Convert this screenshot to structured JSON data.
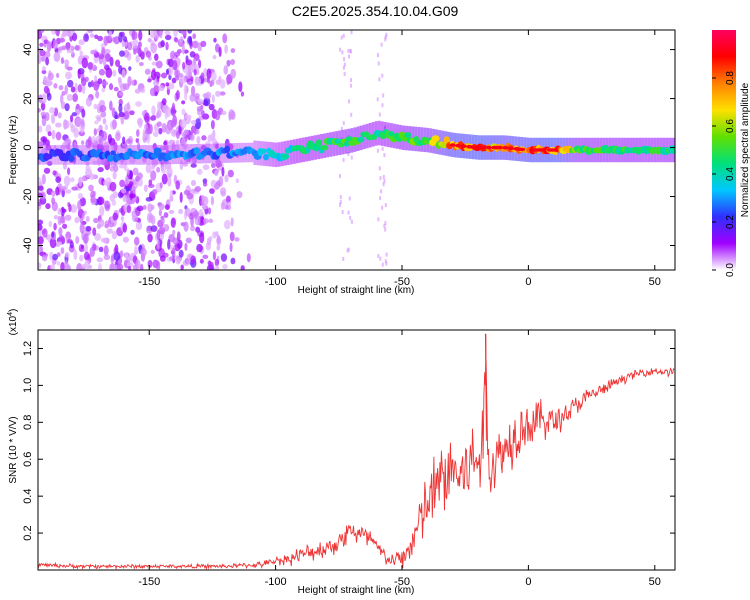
{
  "title": "C2E5.2025.354.10.04.G09",
  "chart_data": [
    {
      "type": "heatmap",
      "name": "spectrogram",
      "xlabel": "Height of straight line (km)",
      "ylabel": "Frequency (Hz)",
      "xlim": [
        -194,
        58
      ],
      "ylim": [
        -50,
        48
      ],
      "xticks": [
        -150,
        -100,
        -50,
        0,
        50
      ],
      "yticks": [
        -40,
        -20,
        0,
        20,
        40
      ],
      "colorbar": {
        "label": "Normalized spectral amplitude",
        "range": [
          0,
          1
        ],
        "ticks": [
          0.0,
          0.2,
          0.4,
          0.6,
          0.8
        ],
        "colors": [
          "#ffffff",
          "#a000ff",
          "#3030ff",
          "#00c8ff",
          "#00e07a",
          "#60e000",
          "#ffe000",
          "#ff8000",
          "#ff0000",
          "#ff0060"
        ]
      },
      "ridge": {
        "x": [
          -194,
          -150,
          -110,
          -100,
          -90,
          -80,
          -70,
          -60,
          -50,
          -40,
          -30,
          -20,
          -10,
          0,
          10,
          20,
          58
        ],
        "y": [
          -3,
          -3,
          -2,
          -3,
          -1,
          1,
          3,
          6,
          4,
          3,
          1,
          0,
          0,
          -1,
          -1,
          -1,
          -1
        ],
        "amplitude": [
          0.25,
          0.3,
          0.3,
          0.4,
          0.45,
          0.5,
          0.55,
          0.45,
          0.55,
          0.6,
          0.85,
          0.9,
          0.8,
          0.85,
          0.9,
          0.55,
          0.5
        ]
      },
      "noise_region_x": [
        -194,
        -110
      ]
    },
    {
      "type": "line",
      "name": "snr",
      "xlabel": "Height of straight line (km)",
      "ylabel": "SNR (10 * V/V)",
      "yscale_label": "(x10",
      "yscale_exp": "4",
      "yscale_close": ")",
      "xlim": [
        -194,
        58
      ],
      "ylim": [
        0,
        1.3
      ],
      "xticks": [
        -150,
        -100,
        -50,
        0,
        50
      ],
      "yticks": [
        0.2,
        0.4,
        0.6,
        0.8,
        1.0,
        1.2
      ],
      "ytick_labels": [
        "0.2",
        "0.4",
        "0.6",
        "0.8",
        "1.0",
        "1.2"
      ],
      "color": "#ee3333",
      "series": [
        {
          "name": "SNR",
          "x": [
            -194,
            -180,
            -160,
            -140,
            -120,
            -105,
            -100,
            -95,
            -90,
            -85,
            -80,
            -75,
            -72,
            -70,
            -68,
            -65,
            -62,
            -60,
            -55,
            -50,
            -47,
            -44,
            -42,
            -40,
            -38,
            -35,
            -32,
            -30,
            -27,
            -25,
            -22,
            -20,
            -18,
            -17,
            -16,
            -15,
            -13,
            -10,
            -7,
            -5,
            -2,
            0,
            5,
            10,
            15,
            20,
            25,
            30,
            35,
            40,
            45,
            50,
            55,
            58
          ],
          "y": [
            0.03,
            0.02,
            0.02,
            0.02,
            0.02,
            0.03,
            0.05,
            0.06,
            0.08,
            0.1,
            0.12,
            0.15,
            0.2,
            0.22,
            0.2,
            0.18,
            0.16,
            0.12,
            0.05,
            0.06,
            0.12,
            0.22,
            0.3,
            0.35,
            0.4,
            0.48,
            0.52,
            0.55,
            0.5,
            0.55,
            0.58,
            0.6,
            0.65,
            1.28,
            0.6,
            0.55,
            0.6,
            0.65,
            0.7,
            0.75,
            0.8,
            0.78,
            0.82,
            0.8,
            0.85,
            0.9,
            0.95,
            0.98,
            1.02,
            1.05,
            1.07,
            1.08,
            1.07,
            1.08
          ],
          "spread": [
            0.01,
            0.01,
            0.01,
            0.01,
            0.01,
            0.015,
            0.02,
            0.03,
            0.04,
            0.04,
            0.05,
            0.05,
            0.06,
            0.06,
            0.06,
            0.06,
            0.06,
            0.05,
            0.03,
            0.05,
            0.08,
            0.12,
            0.14,
            0.16,
            0.18,
            0.18,
            0.2,
            0.2,
            0.2,
            0.2,
            0.2,
            0.2,
            0.18,
            0.0,
            0.16,
            0.15,
            0.15,
            0.15,
            0.14,
            0.14,
            0.12,
            0.12,
            0.1,
            0.08,
            0.06,
            0.05,
            0.04,
            0.03,
            0.025,
            0.02,
            0.02,
            0.02,
            0.02,
            0.02
          ]
        }
      ]
    }
  ]
}
